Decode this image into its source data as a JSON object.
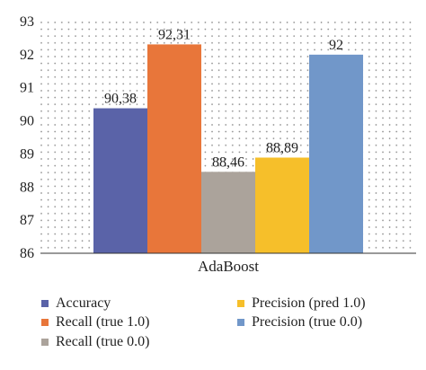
{
  "chart_data": {
    "type": "bar",
    "categories": [
      "AdaBoost"
    ],
    "series": [
      {
        "name": "Accuracy",
        "values": [
          90.38
        ],
        "label": "90,38",
        "color": "#5a63a8"
      },
      {
        "name": "Recall (true 1.0)",
        "values": [
          92.31
        ],
        "label": "92,31",
        "color": "#e8763a"
      },
      {
        "name": "Recall (true 0.0)",
        "values": [
          88.46
        ],
        "label": "88,46",
        "color": "#aba39b"
      },
      {
        "name": "Precision (pred 1.0)",
        "values": [
          88.89
        ],
        "label": "88,89",
        "color": "#f6bf2a"
      },
      {
        "name": "Precision (true 0.0)",
        "values": [
          92
        ],
        "label": "92",
        "color": "#7197c9"
      }
    ],
    "ylim": [
      86,
      93
    ],
    "yticks": [
      "86",
      "87",
      "88",
      "89",
      "90",
      "91",
      "92",
      "93"
    ],
    "grid": "dotted",
    "legend": "bottom",
    "xlabel": "",
    "ylabel": ""
  }
}
